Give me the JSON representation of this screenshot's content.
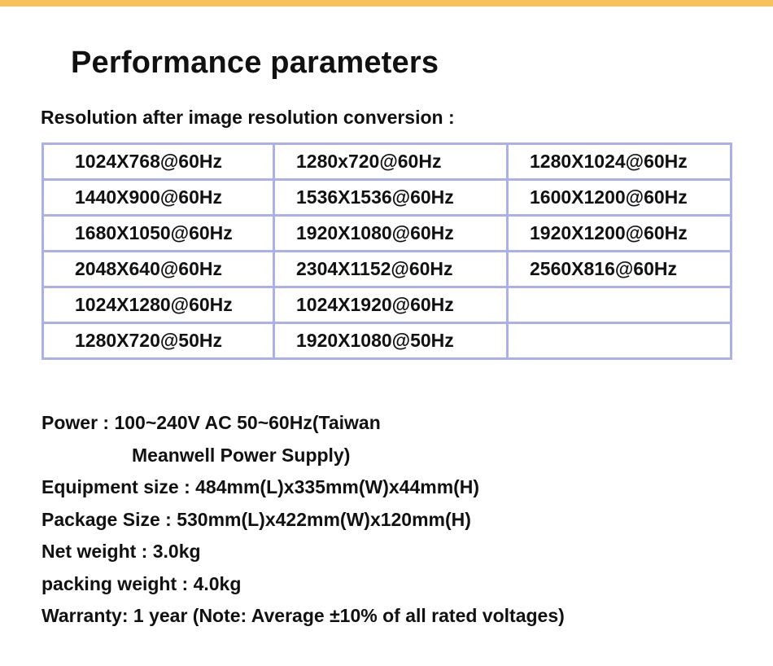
{
  "title": "Performance parameters",
  "subtitle": "Resolution after image resolution conversion :",
  "resolutions": [
    [
      "1024X768@60Hz",
      "1280x720@60Hz",
      "1280X1024@60Hz"
    ],
    [
      "1440X900@60Hz",
      "1536X1536@60Hz",
      "1600X1200@60Hz"
    ],
    [
      "1680X1050@60Hz",
      "1920X1080@60Hz",
      "1920X1200@60Hz"
    ],
    [
      "2048X640@60Hz",
      "2304X1152@60Hz",
      "2560X816@60Hz"
    ],
    [
      "1024X1280@60Hz",
      "1024X1920@60Hz",
      ""
    ],
    [
      "1280X720@50Hz",
      "1920X1080@50Hz",
      ""
    ]
  ],
  "specs": {
    "power_line1": "Power : 100~240V  AC  50~60Hz(Taiwan",
    "power_line2": "Meanwell  Power Supply)",
    "equipment_size": "Equipment size : 484mm(L)x335mm(W)x44mm(H)",
    "package_size": "Package Size : 530mm(L)x422mm(W)x120mm(H)",
    "net_weight": "Net weight : 3.0kg",
    "packing_weight": "packing weight : 4.0kg",
    "warranty": "Warranty: 1 year (Note: Average ±10% of all rated voltages)"
  },
  "colors": {
    "accent_bar": "#f7c25e",
    "table_border": "#aab0ec"
  }
}
